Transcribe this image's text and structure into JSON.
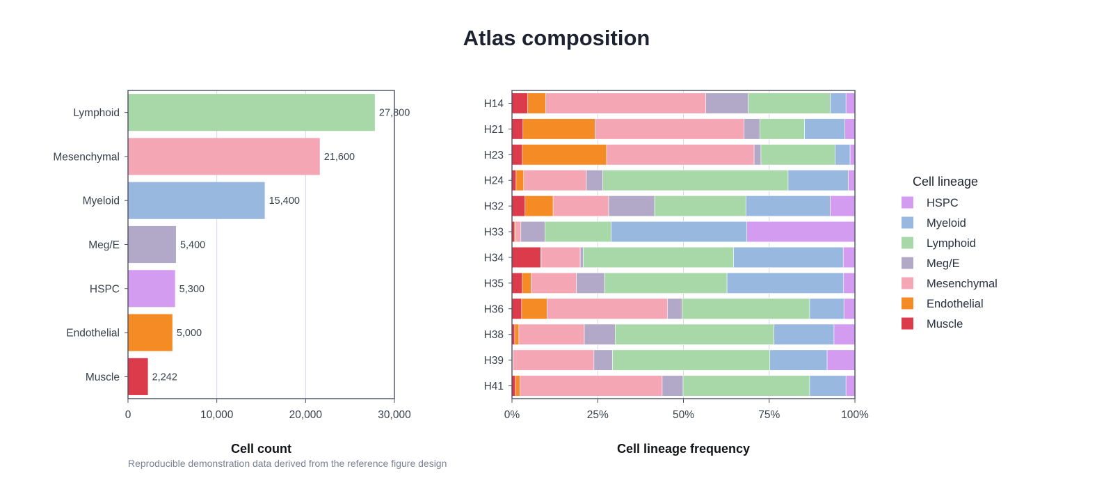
{
  "title": "Atlas composition",
  "caption": "Reproducible demonstration data derived from the reference figure design",
  "chart_data": [
    {
      "type": "bar",
      "orientation": "horizontal",
      "categories": [
        "Lymphoid",
        "Mesenchymal",
        "Myeloid",
        "Meg/E",
        "HSPC",
        "Endothelial",
        "Muscle"
      ],
      "values": [
        27800,
        21600,
        15400,
        5400,
        5300,
        5000,
        2242
      ],
      "value_labels": [
        "27,800",
        "21,600",
        "15,400",
        "5,400",
        "5,300",
        "5,000",
        "2,242"
      ],
      "xlabel": "Cell count",
      "ylabel": "",
      "xlim": [
        0,
        30000
      ],
      "xticks": [
        0,
        10000,
        20000,
        30000
      ],
      "xtick_labels": [
        "0",
        "10,000",
        "20,000",
        "30,000"
      ],
      "grid": "vertical",
      "colors": [
        "#a8d8a8",
        "#f4a6b4",
        "#98b8df",
        "#b2a8c8",
        "#d49cf0",
        "#f58b25",
        "#dc3b4b"
      ]
    },
    {
      "type": "bar",
      "orientation": "horizontal",
      "stacked": true,
      "normalized": true,
      "categories": [
        "H14",
        "H21",
        "H23",
        "H24",
        "H32",
        "H33",
        "H34",
        "H35",
        "H36",
        "H38",
        "H39",
        "H41"
      ],
      "stack_order": [
        "Muscle",
        "Endothelial",
        "Mesenchymal",
        "Meg/E",
        "Lymphoid",
        "Myeloid",
        "HSPC"
      ],
      "series": [
        {
          "name": "Muscle",
          "values": [
            4.6,
            3.2,
            3.0,
            1.2,
            3.8,
            0.8,
            8.4,
            3.0,
            2.8,
            0.8,
            0.2,
            1.0
          ]
        },
        {
          "name": "Endothelial",
          "values": [
            5.2,
            21.0,
            24.6,
            2.2,
            8.2,
            0.3,
            0.1,
            2.6,
            7.4,
            1.2,
            0.1,
            1.3
          ]
        },
        {
          "name": "Mesenchymal",
          "values": [
            46.7,
            43.5,
            43.0,
            18.3,
            16.2,
            1.5,
            11.4,
            13.2,
            35.1,
            19.1,
            23.6,
            41.5
          ]
        },
        {
          "name": "Meg/E",
          "values": [
            12.4,
            4.6,
            2.0,
            4.8,
            13.4,
            7.0,
            0.9,
            8.2,
            4.3,
            9.0,
            5.4,
            6.1
          ]
        },
        {
          "name": "Lymphoid",
          "values": [
            23.9,
            13.0,
            21.6,
            54.0,
            26.6,
            19.3,
            43.8,
            35.7,
            37.2,
            46.3,
            45.9,
            36.9
          ]
        },
        {
          "name": "Myeloid",
          "values": [
            4.6,
            11.8,
            4.4,
            17.6,
            24.6,
            39.6,
            32.0,
            34.0,
            10.0,
            17.5,
            16.7,
            10.6
          ]
        },
        {
          "name": "HSPC",
          "values": [
            2.6,
            2.9,
            1.4,
            1.9,
            7.2,
            31.5,
            3.4,
            3.3,
            3.2,
            6.1,
            8.1,
            2.6
          ]
        }
      ],
      "xlabel": "Cell lineage frequency",
      "ylabel": "",
      "xlim": [
        0,
        100
      ],
      "xticks": [
        0,
        25,
        50,
        75,
        100
      ],
      "xtick_labels": [
        "0%",
        "25%",
        "50%",
        "75%",
        "100%"
      ],
      "grid": "vertical",
      "legend": {
        "title": "Cell lineage",
        "placement": "right",
        "items": [
          "HSPC",
          "Myeloid",
          "Lymphoid",
          "Meg/E",
          "Mesenchymal",
          "Endothelial",
          "Muscle"
        ]
      },
      "colors": {
        "HSPC": "#d49cf0",
        "Myeloid": "#98b8df",
        "Lymphoid": "#a8d8a8",
        "Meg/E": "#b2a8c8",
        "Mesenchymal": "#f4a6b4",
        "Endothelial": "#f58b25",
        "Muscle": "#dc3b4b"
      }
    }
  ]
}
